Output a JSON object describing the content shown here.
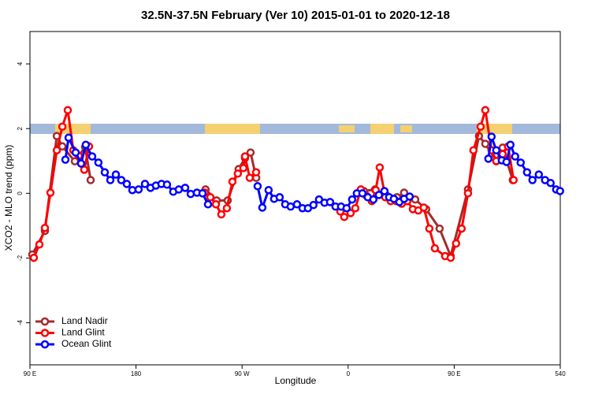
{
  "chart_data": {
    "type": "line",
    "title": "32.5N-37.5N February (Ver 10)   2015-01-01 to 2020-12-18",
    "x_label": "Longitude",
    "y_label": "XCO2 - MLO trend (ppm)",
    "xlim": [
      90,
      540
    ],
    "ylim": [
      -5.3,
      5
    ],
    "xticks": [
      {
        "value": 90,
        "label": "90 E"
      },
      180,
      {
        "value": 270,
        "label": "90 W"
      },
      {
        "value": 360,
        "label": "0"
      },
      {
        "value": 450,
        "label": "90 E"
      },
      540
    ],
    "yticks": [
      -4,
      -2,
      0,
      2,
      4
    ],
    "legend": "bottomleft",
    "series": [
      {
        "name": "Land Nadir",
        "color": "#a52a2a",
        "x": [
          92,
          102.7,
          112.8,
          117.5,
          128.1,
          136.8,
          141.5,
          null,
          239,
          248.4,
          257.8,
          267.1,
          272.5,
          277.2,
          282,
          null,
          373.4,
          382.8,
          392.1,
          401.5,
          407.5,
          416.9,
          426.2,
          437.6,
          447,
          461.7,
          471,
          476.4,
          485.7,
          491.1,
          499.7
        ],
        "values": [
          -1.89,
          -1.16,
          1.77,
          1.45,
          0.99,
          1.43,
          0.41,
          null,
          0.12,
          -0.22,
          -0.22,
          0.75,
          1.09,
          1.26,
          0.48,
          null,
          0.07,
          0.12,
          -0.05,
          -0.12,
          0.02,
          -0.19,
          -0.49,
          -1.09,
          -1.94,
          0.12,
          1.77,
          1.53,
          0.99,
          1.41,
          0.41
        ]
      },
      {
        "name": "Land Glint",
        "color": "#ff0000",
        "x": [
          93.3,
          98,
          102.7,
          107.4,
          112.8,
          117.5,
          122.1,
          126.8,
          131.4,
          136.1,
          140.1,
          null,
          238.4,
          243.1,
          247.8,
          252.4,
          257.1,
          261.8,
          266.4,
          271.1,
          272.5,
          276.5,
          281.9,
          null,
          353.4,
          356.7,
          362.1,
          366.1,
          370.8,
          375.4,
          380.1,
          383.4,
          386.8,
          391.5,
          396.1,
          400.8,
          405.5,
          410.2,
          414.9,
          419.5,
          424.2,
          428.9,
          433.6,
          442.3,
          447,
          451.6,
          456.3,
          461.7,
          466.3,
          472.4,
          476.4,
          481.7,
          485.7,
          491.1,
          495.7,
          500.4
        ],
        "values": [
          -1.99,
          -1.58,
          -1.07,
          0.02,
          1.33,
          2.06,
          2.57,
          1.33,
          1.16,
          0.73,
          1.45,
          null,
          0.02,
          -0.12,
          -0.34,
          -0.65,
          -0.46,
          0.36,
          0.61,
          0.78,
          1.14,
          0.48,
          0.65,
          null,
          -0.56,
          -0.73,
          -0.61,
          -0.46,
          0.12,
          -0.07,
          -0.24,
          0.1,
          0.8,
          -0.12,
          -0.24,
          -0.24,
          -0.32,
          -0.24,
          -0.49,
          -0.53,
          -0.44,
          -1.09,
          -1.7,
          -1.94,
          -1.99,
          -1.55,
          -1.09,
          0.0,
          1.33,
          2.06,
          2.57,
          1.33,
          1.0,
          1.21,
          1.45,
          0.41
        ]
      },
      {
        "name": "Ocean Glint",
        "color": "#0000ff",
        "x": [
          120.1,
          122.8,
          128.8,
          133.4,
          137.4,
          142.8,
          148.1,
          153.5,
          158.2,
          162.9,
          167.5,
          172.2,
          176.9,
          182.2,
          187.6,
          192.3,
          196.9,
          201.6,
          206.3,
          211.6,
          216.3,
          221.7,
          226.4,
          231.7,
          236.4,
          241.1,
          null,
          283.2,
          287.2,
          292.5,
          297.2,
          301.9,
          306.6,
          311.2,
          316.6,
          321.3,
          325.9,
          330.6,
          335.3,
          340,
          344.7,
          349.3,
          354,
          358.7,
          363.4,
          367.4,
          372.1,
          376.7,
          381.4,
          386.1,
          390.8,
          394.8,
          398.8,
          403.5,
          407.5,
          412.2,
          null,
          479,
          481.7,
          485.7,
          490.4,
          494.4,
          497.7,
          501.7,
          506.4,
          511.8,
          516.4,
          521.8,
          527.1,
          531.8,
          536.5,
          539.8
        ],
        "values": [
          1.04,
          1.72,
          1.26,
          0.92,
          1.5,
          1.14,
          0.95,
          0.65,
          0.41,
          0.58,
          0.41,
          0.29,
          0.1,
          0.12,
          0.29,
          0.17,
          0.24,
          0.29,
          0.27,
          0.05,
          0.12,
          0.17,
          -0.02,
          0.02,
          0.0,
          -0.34,
          null,
          0.22,
          -0.44,
          0.1,
          -0.17,
          -0.12,
          -0.34,
          -0.41,
          -0.34,
          -0.46,
          -0.46,
          -0.36,
          -0.19,
          -0.29,
          -0.27,
          -0.41,
          -0.41,
          -0.46,
          -0.19,
          0.0,
          0.0,
          -0.12,
          -0.19,
          -0.05,
          0.07,
          -0.12,
          -0.17,
          -0.27,
          -0.17,
          -0.1,
          null,
          1.07,
          1.75,
          1.33,
          1.02,
          0.97,
          1.5,
          1.14,
          0.95,
          0.65,
          0.41,
          0.58,
          0.41,
          0.32,
          0.12,
          0.07
        ]
      }
    ]
  }
}
